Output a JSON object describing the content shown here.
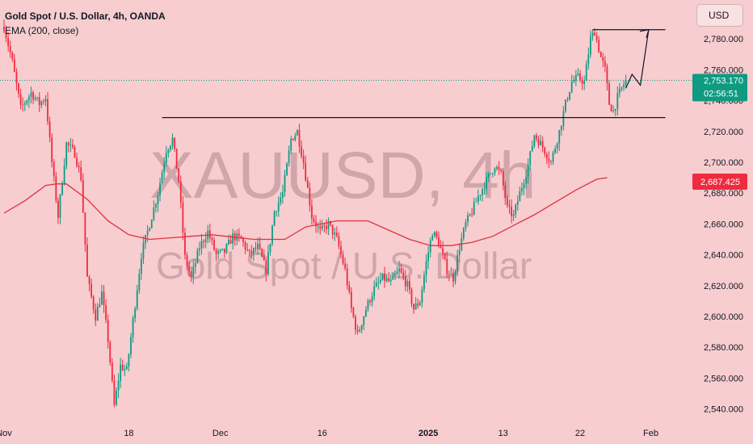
{
  "header": {
    "title": "Gold Spot / U.S. Dollar, 4h, OANDA",
    "indicator": "EMA (200, close)"
  },
  "currency_button": "USD",
  "watermark": {
    "symbol": "XAUUSD, 4h",
    "name": "Gold Spot / U.S. Dollar"
  },
  "colors": {
    "background": "#f7cdd0",
    "up_candle": "#0f9a82",
    "down_candle": "#ef2b3f",
    "ema": "#e0323f",
    "annotation": "#131722",
    "price_tag": "#0f9a82",
    "ema_tag": "#ef2b3f"
  },
  "chart_data": {
    "type": "candlestick",
    "ylim": [
      2533,
      2800
    ],
    "y_ticks": [
      "2,540.000",
      "2,560.000",
      "2,580.000",
      "2,600.000",
      "2,620.000",
      "2,640.000",
      "2,660.000",
      "2,680.000",
      "2,700.000",
      "2,720.000",
      "2,740.000",
      "2,760.000",
      "2,780.000"
    ],
    "y_tick_values": [
      2540,
      2560,
      2580,
      2600,
      2620,
      2640,
      2660,
      2680,
      2700,
      2720,
      2740,
      2760,
      2780
    ],
    "x_ticks": [
      {
        "label": "Nov",
        "bar": 0,
        "bold": false
      },
      {
        "label": "18",
        "bar": 60,
        "bold": false
      },
      {
        "label": "Dec",
        "bar": 104,
        "bold": false
      },
      {
        "label": "16",
        "bar": 153,
        "bold": false
      },
      {
        "label": "2025",
        "bar": 204,
        "bold": true
      },
      {
        "label": "13",
        "bar": 240,
        "bold": false
      },
      {
        "label": "22",
        "bar": 277,
        "bold": false
      },
      {
        "label": "Feb",
        "bar": 311,
        "bold": false
      }
    ],
    "bar_count": 320,
    "price_path": [
      [
        0,
        2788
      ],
      [
        4,
        2765
      ],
      [
        8,
        2735
      ],
      [
        13,
        2745
      ],
      [
        17,
        2738
      ],
      [
        20,
        2742
      ],
      [
        23,
        2700
      ],
      [
        26,
        2665
      ],
      [
        30,
        2712
      ],
      [
        34,
        2706
      ],
      [
        37,
        2690
      ],
      [
        40,
        2625
      ],
      [
        44,
        2600
      ],
      [
        47,
        2615
      ],
      [
        50,
        2585
      ],
      [
        53,
        2542
      ],
      [
        56,
        2568
      ],
      [
        59,
        2565
      ],
      [
        63,
        2608
      ],
      [
        66,
        2640
      ],
      [
        70,
        2660
      ],
      [
        74,
        2680
      ],
      [
        78,
        2708
      ],
      [
        81,
        2715
      ],
      [
        84,
        2688
      ],
      [
        87,
        2638
      ],
      [
        90,
        2625
      ],
      [
        94,
        2645
      ],
      [
        98,
        2655
      ],
      [
        102,
        2640
      ],
      [
        106,
        2642
      ],
      [
        110,
        2652
      ],
      [
        114,
        2650
      ],
      [
        118,
        2640
      ],
      [
        122,
        2645
      ],
      [
        126,
        2630
      ],
      [
        130,
        2668
      ],
      [
        134,
        2680
      ],
      [
        138,
        2715
      ],
      [
        141,
        2720
      ],
      [
        144,
        2700
      ],
      [
        148,
        2665
      ],
      [
        152,
        2655
      ],
      [
        156,
        2660
      ],
      [
        160,
        2650
      ],
      [
        164,
        2630
      ],
      [
        167,
        2605
      ],
      [
        170,
        2588
      ],
      [
        174,
        2605
      ],
      [
        178,
        2618
      ],
      [
        182,
        2625
      ],
      [
        186,
        2622
      ],
      [
        190,
        2630
      ],
      [
        194,
        2620
      ],
      [
        197,
        2605
      ],
      [
        200,
        2610
      ],
      [
        203,
        2635
      ],
      [
        206,
        2655
      ],
      [
        209,
        2648
      ],
      [
        213,
        2630
      ],
      [
        216,
        2625
      ],
      [
        219,
        2645
      ],
      [
        222,
        2660
      ],
      [
        225,
        2668
      ],
      [
        228,
        2678
      ],
      [
        232,
        2688
      ],
      [
        236,
        2698
      ],
      [
        239,
        2692
      ],
      [
        242,
        2670
      ],
      [
        245,
        2665
      ],
      [
        248,
        2680
      ],
      [
        252,
        2698
      ],
      [
        255,
        2718
      ],
      [
        259,
        2710
      ],
      [
        263,
        2700
      ],
      [
        267,
        2720
      ],
      [
        270,
        2738
      ],
      [
        273,
        2752
      ],
      [
        276,
        2755
      ],
      [
        279,
        2752
      ],
      [
        282,
        2780
      ],
      [
        284,
        2785
      ],
      [
        287,
        2768
      ],
      [
        289,
        2760
      ],
      [
        291,
        2738
      ],
      [
        293,
        2733
      ],
      [
        295,
        2742
      ],
      [
        297,
        2748
      ],
      [
        299,
        2753
      ]
    ],
    "ema_points": [
      [
        0,
        2667
      ],
      [
        10,
        2675
      ],
      [
        20,
        2685
      ],
      [
        25,
        2686
      ],
      [
        30,
        2686
      ],
      [
        40,
        2676
      ],
      [
        50,
        2662
      ],
      [
        60,
        2653
      ],
      [
        70,
        2650
      ],
      [
        80,
        2651
      ],
      [
        90,
        2652
      ],
      [
        100,
        2653
      ],
      [
        120,
        2650
      ],
      [
        135,
        2650
      ],
      [
        145,
        2658
      ],
      [
        160,
        2662
      ],
      [
        175,
        2662
      ],
      [
        185,
        2656
      ],
      [
        195,
        2650
      ],
      [
        205,
        2646
      ],
      [
        215,
        2646
      ],
      [
        225,
        2648
      ],
      [
        235,
        2652
      ],
      [
        245,
        2659
      ],
      [
        255,
        2666
      ],
      [
        265,
        2674
      ],
      [
        275,
        2682
      ],
      [
        285,
        2689
      ],
      [
        290,
        2690
      ]
    ],
    "resistance": {
      "price": 2786,
      "bar_start": 283,
      "bar_end": 318
    },
    "support": {
      "price": 2729,
      "bar_start": 76,
      "bar_end": 318
    },
    "projection": [
      [
        299,
        2748
      ],
      [
        302,
        2757
      ],
      [
        306,
        2750
      ],
      [
        310,
        2786
      ]
    ],
    "last_price": {
      "value": "2,753.170",
      "countdown": "02:56:51",
      "price": 2753.17
    },
    "ema_value": {
      "value": "2,687.425",
      "price": 2687.425
    }
  }
}
